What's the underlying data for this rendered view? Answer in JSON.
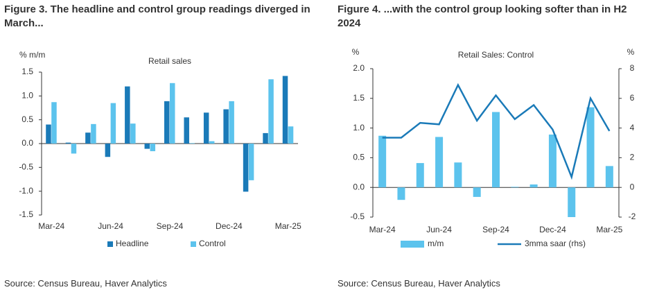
{
  "chart_data": [
    {
      "type": "bar",
      "title": "Figure 3. The headline and control group readings diverged in March...",
      "subtitle": "Retail sales",
      "ylabel": "% m/m",
      "source": "Source: Census Bureau, Haver Analytics",
      "categories": [
        "Mar-24",
        null,
        null,
        "Jun-24",
        null,
        null,
        "Sep-24",
        null,
        null,
        "Dec-24",
        null,
        null,
        "Mar-25"
      ],
      "series": [
        {
          "name": "Headline",
          "color": "#1a7ab8",
          "values": [
            0.4,
            0.02,
            0.23,
            -0.28,
            1.2,
            -0.11,
            0.89,
            0.55,
            0.65,
            0.72,
            -1.01,
            0.22,
            1.42
          ]
        },
        {
          "name": "Control",
          "color": "#5cc3ed",
          "values": [
            0.87,
            -0.21,
            0.41,
            0.85,
            0.42,
            -0.16,
            1.27,
            0.01,
            0.05,
            0.89,
            -0.77,
            1.35,
            0.36
          ]
        }
      ],
      "ylim": [
        -1.5,
        1.5
      ],
      "yticks": [
        -1.5,
        {
          "value": -1.0,
          "label": "-1.0"
        },
        -0.5,
        {
          "value": 0,
          "label": "0.0"
        },
        0.5,
        {
          "value": 1.0,
          "label": "1.0"
        },
        1.5
      ]
    },
    {
      "type": "bar",
      "title": "Figure 4. ...with the control group looking softer than in H2 2024",
      "subtitle": "Retail Sales: Control",
      "ylabel": "%",
      "y2label": "%",
      "source": "Source: Census Bureau, Haver Analytics",
      "categories": [
        "Mar-24",
        null,
        null,
        "Jun-24",
        null,
        null,
        "Sep-24",
        null,
        null,
        "Dec-24",
        null,
        null,
        "Mar-25"
      ],
      "series": [
        {
          "name": "m/m",
          "color": "#5cc3ed",
          "values": [
            0.87,
            -0.21,
            0.41,
            0.85,
            0.42,
            -0.16,
            1.27,
            0.01,
            0.05,
            0.89,
            -0.77,
            1.35,
            0.36
          ]
        },
        {
          "name": "3mma saar (rhs)",
          "type": "line",
          "axis": "y2",
          "color": "#1a7ab8",
          "values": [
            3.35,
            3.35,
            4.35,
            4.25,
            6.9,
            4.5,
            6.2,
            4.6,
            5.55,
            3.9,
            0.7,
            6.0,
            3.8
          ]
        }
      ],
      "ylim": [
        -0.5,
        2.0
      ],
      "yticks": [
        -0.5,
        {
          "value": 0,
          "label": "0.0"
        },
        0.5,
        {
          "value": 1.0,
          "label": "1.0"
        },
        1.5,
        {
          "value": 2.0,
          "label": "2.0"
        }
      ],
      "y2lim": [
        -2,
        8
      ],
      "y2ticks": [
        -2,
        0,
        2,
        4,
        6,
        8
      ]
    }
  ]
}
